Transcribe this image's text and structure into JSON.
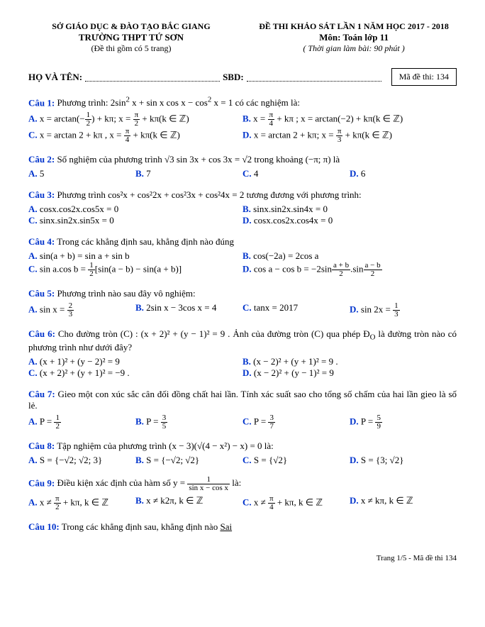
{
  "header": {
    "left1": "SỞ GIÁO DỤC & ĐÀO TẠO BẮC GIANG",
    "left2": "TRƯỜNG THPT TỨ SƠN",
    "left3": "(Đề thi gồm có 5 trang)",
    "right1": "ĐỀ THI KHẢO SÁT LẦN 1 NĂM HỌC 2017 - 2018",
    "right2": "Môn: Toán lớp 11",
    "right3": "( Thời gian làm bài:  90  phút )"
  },
  "info": {
    "name_label": "HỌ VÀ TÊN:",
    "sbd_label": "SBD:",
    "code_label": "Mã đề thi: 134"
  },
  "q1": {
    "label": "Câu 1:",
    "text_a": " Phương trình:  2sin",
    "text_b": " x + sin x cos x − cos",
    "text_c": " x = 1 có các nghiệm là:",
    "A_a": "x = arctan(−",
    "A_b": ") + kπ; x = ",
    "A_c": " + kπ(k ∈ ℤ)",
    "B_a": "x = ",
    "B_b": " + kπ ; x = arctan(−2) + kπ(k ∈ ℤ)",
    "C_a": "x = arctan 2 + kπ , x = ",
    "C_b": " + kπ(k ∈ ℤ)",
    "D_a": "x = arctan 2 + kπ; x = ",
    "D_b": " + kπ(k ∈ ℤ)"
  },
  "q2": {
    "label": "Câu 2:",
    "text_a": " Số nghiệm của phương trình  √3 sin 3x + cos 3x = √2  trong khoảng  (−π; π) là",
    "A": "5",
    "B": "7",
    "C": "4",
    "D": "6"
  },
  "q3": {
    "label": "Câu 3:",
    "text": " Phương trình cos²x + cos²2x + cos²3x + cos²4x = 2 tương đương với phương trình:",
    "A": "cosx.cos2x.cos5x = 0",
    "B": "sinx.sin2x.sin4x = 0",
    "C": "sinx.sin2x.sin5x = 0",
    "D": "cosx.cos2x.cos4x = 0"
  },
  "q4": {
    "label": "Câu 4:",
    "text": " Trong các khẳng định sau, khẳng định nào đúng",
    "A": "sin(a + b) = sin a + sin b",
    "B": "cos(−2a) = 2cos a",
    "C_a": "sin a.cos b = ",
    "C_b": "[sin(a − b) − sin(a + b)]",
    "D_a": "cos a − cos b = −2sin",
    "D_b": ".sin"
  },
  "q5": {
    "label": "Câu 5:",
    "text": " Phương trình nào sau đây vô nghiệm:",
    "A_a": "sin x = ",
    "B": "2sin x − 3cos x = 4",
    "C": "tanx = 2017",
    "D_a": "sin 2x = "
  },
  "q6": {
    "label": "Câu 6:",
    "text_a": " Cho đường tròn (C) : (x + 2)² + (y − 1)² = 9 . Ảnh của đường tròn (C) qua phép Đ",
    "text_b": " là đường tròn  nào có phương trình như dưới đây?",
    "A": "(x + 1)² + (y − 2)² = 9",
    "B": "(x − 2)² + (y + 1)² = 9 .",
    "C": "(x + 2)² + (y + 1)² = −9 .",
    "D": "(x − 2)² + (y − 1)² = 9"
  },
  "q7": {
    "label": "Câu 7:",
    "text": " Gieo một con xúc sắc cân đối đồng chất hai lần. Tính xác suất sao cho tổng số chấm của hai lần gieo là số lẻ.",
    "A_a": "P = ",
    "B_a": "P = ",
    "C_a": "P = ",
    "D_a": "P = "
  },
  "q8": {
    "label": "Câu 8:",
    "text_a": " Tập nghiệm của phương trình  (x − 3)(√(4 − x²) − x) = 0 là:",
    "A": "S = {−√2; √2; 3}",
    "B": "S = {−√2; √2}",
    "C": "S = {√2}",
    "D": "S = {3; √2}"
  },
  "q9": {
    "label": "Câu 9:",
    "text_a": " Điều kiện xác định của hàm số  y = ",
    "text_b": "  là:",
    "A_a": "x ≠ ",
    "A_b": " + kπ, k ∈ ℤ",
    "B": "x ≠ k2π, k ∈ ℤ",
    "C_a": "x ≠ ",
    "C_b": " + kπ, k ∈ ℤ",
    "D": "x ≠ kπ, k ∈ ℤ"
  },
  "q10": {
    "label": "Câu 10:",
    "text_a": " Trong các khẳng định sau, khẳng định nào ",
    "text_b": "Sai"
  },
  "footer": "Trang 1/5 - Mã đề thi 134",
  "fracs": {
    "half_n": "1",
    "half_d": "2",
    "pi2_n": "π",
    "pi2_d": "2",
    "pi4_n": "π",
    "pi4_d": "4",
    "pi3_n": "π",
    "pi3_d": "3",
    "twothird_n": "2",
    "twothird_d": "3",
    "onethird_n": "1",
    "onethird_d": "3",
    "ab1_n": "a + b",
    "ab1_d": "2",
    "ab2_n": "a − b",
    "ab2_d": "2",
    "p1_n": "1",
    "p1_d": "2",
    "p2_n": "3",
    "p2_d": "5",
    "p3_n": "3",
    "p3_d": "7",
    "p4_n": "5",
    "p4_d": "9",
    "y_n": "1",
    "y_d": "sin x − cos x"
  }
}
